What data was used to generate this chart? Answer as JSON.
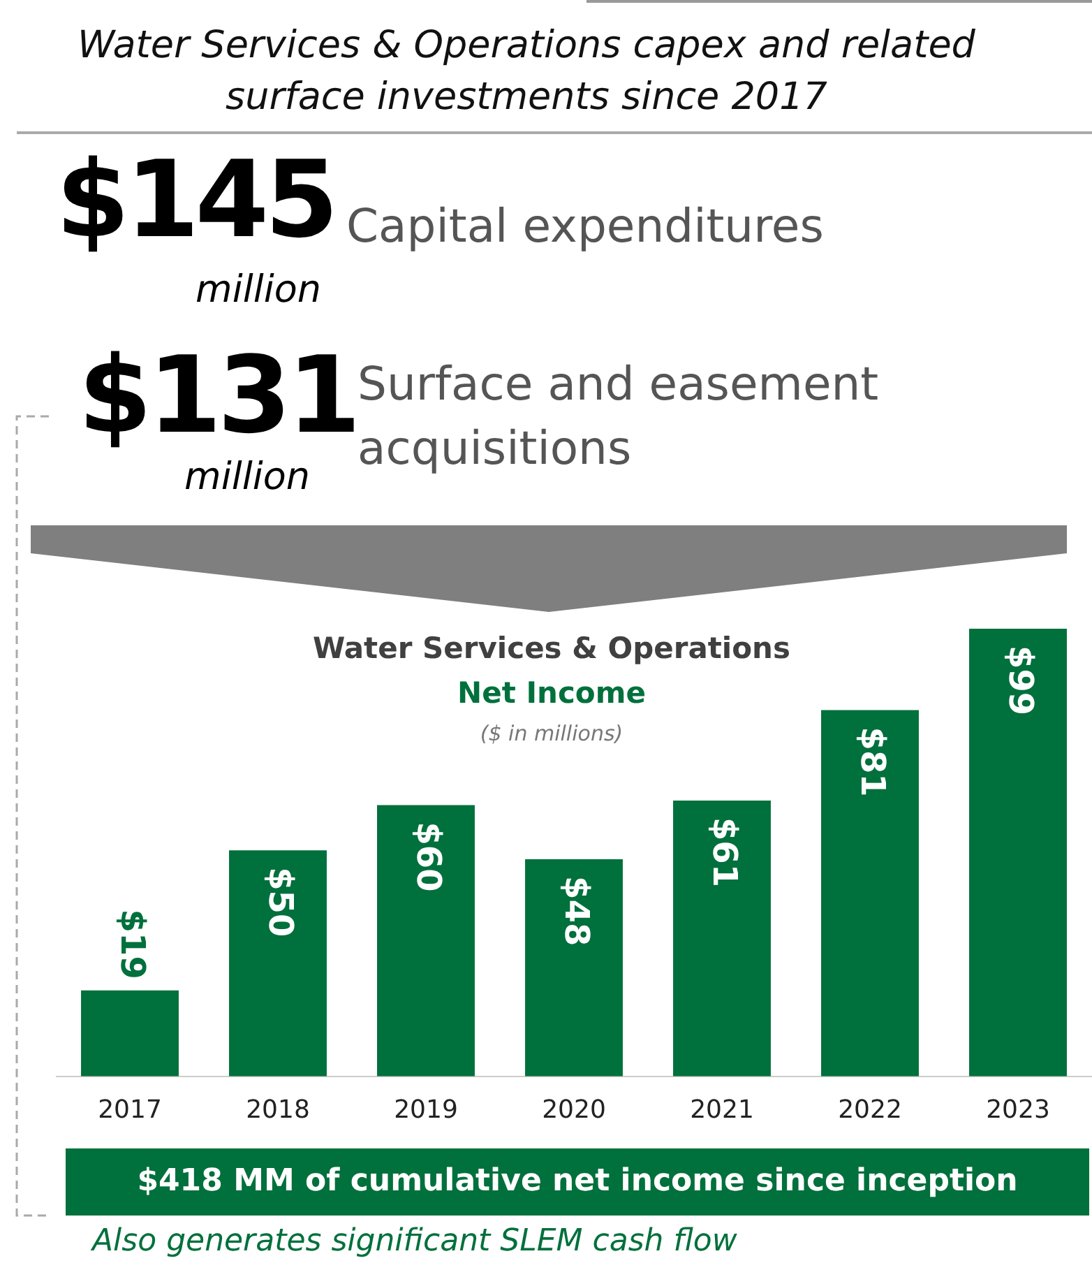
{
  "chart_data": {
    "type": "bar",
    "title": "Water Services & Operations",
    "subtitle": "Net Income",
    "categories": [
      "2017",
      "2018",
      "2019",
      "2020",
      "2021",
      "2022",
      "2023"
    ],
    "values": [
      19,
      50,
      60,
      48,
      61,
      81,
      99
    ],
    "value_labels": [
      "$19",
      "$50",
      "$60",
      "$48",
      "$61",
      "$81",
      "$99"
    ],
    "color": "#00703c",
    "annotations": [
      "Water Services & Operations capex and related surface investments since 2017",
      "$145",
      "million",
      "Capital expenditures",
      "$131",
      "million",
      "Surface and easement acquisitions",
      "($ in millions)",
      "$418 MM of cumulative net income since inception",
      "Also generates significant SLEM cash flow"
    ],
    "grid": false,
    "legend": false
  }
}
